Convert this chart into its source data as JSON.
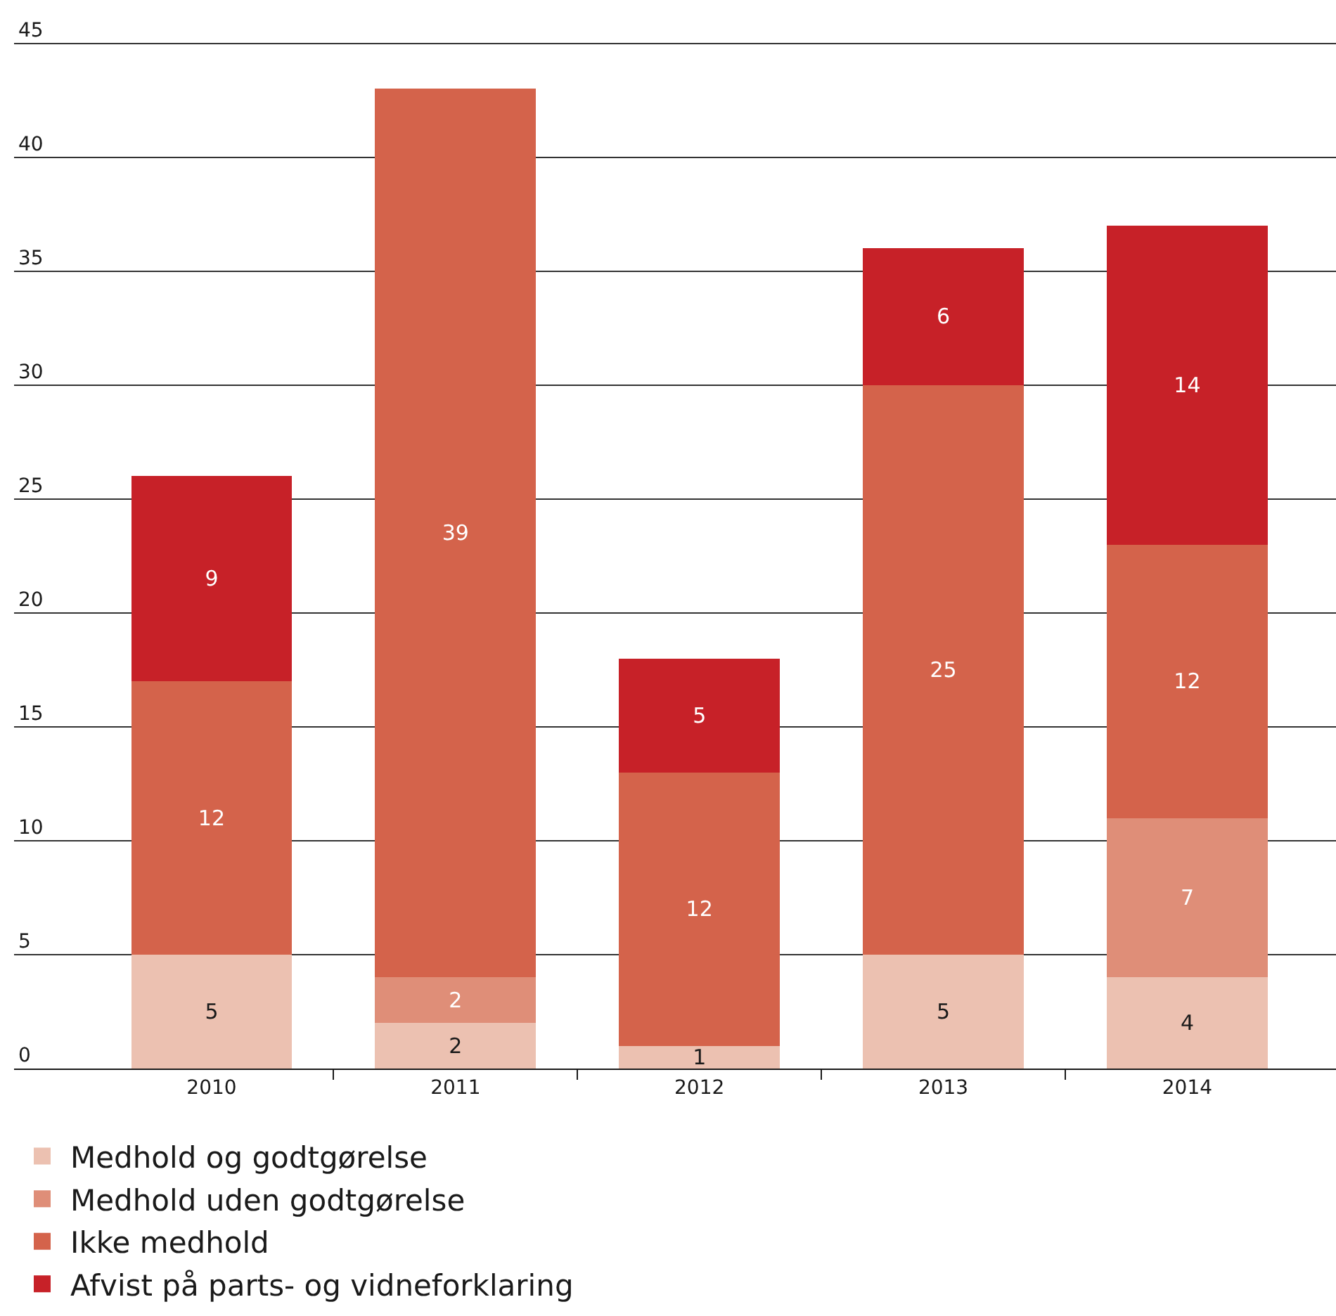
{
  "chart_data": {
    "type": "bar",
    "stacked": true,
    "categories": [
      "2010",
      "2011",
      "2012",
      "2013",
      "2014"
    ],
    "series": [
      {
        "name": "Medhold og godtgørelse",
        "color": "#ecc1b1",
        "values": [
          5,
          2,
          1,
          5,
          4
        ]
      },
      {
        "name": "Medhold uden godtgørelse",
        "color": "#df8e78",
        "values": [
          null,
          2,
          null,
          null,
          7
        ]
      },
      {
        "name": "Ikke medhold",
        "color": "#d4634b",
        "values": [
          12,
          39,
          12,
          25,
          12
        ]
      },
      {
        "name": "Afvist på parts- og vidneforklaring",
        "color": "#c72128",
        "values": [
          9,
          null,
          5,
          6,
          14
        ]
      }
    ],
    "ylim": [
      0,
      46.9
    ],
    "yticks": [
      0,
      5,
      10,
      15,
      20,
      25,
      30,
      35,
      40,
      45
    ],
    "grid": "y",
    "legend": "bottom",
    "data_labels": true
  }
}
